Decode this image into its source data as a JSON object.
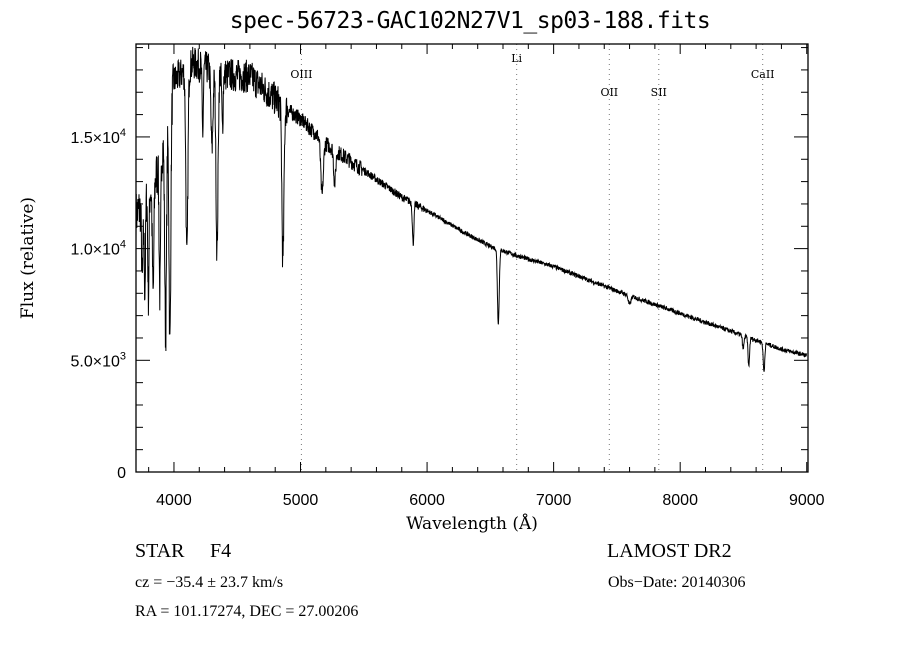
{
  "chart_data": {
    "type": "line",
    "title": "spec-56723-GAC102N27V1_sp03-188.fits",
    "xlabel": "Wavelength (Å)",
    "ylabel": "Flux (relative)",
    "xlim": [
      3700,
      9010
    ],
    "ylim": [
      0,
      19160
    ],
    "x_ticks": [
      4000,
      5000,
      6000,
      7000,
      8000,
      9000
    ],
    "x_tick_labels": [
      "4000",
      "5000",
      "6000",
      "7000",
      "8000",
      "9000"
    ],
    "y_ticks": [
      0,
      5000,
      10000,
      15000
    ],
    "y_tick_labels": [
      {
        "mant": "0",
        "exp": ""
      },
      {
        "mant": "5.0×10",
        "exp": "3"
      },
      {
        "mant": "1.0×10",
        "exp": "4"
      },
      {
        "mant": "1.5×10",
        "exp": "4"
      }
    ],
    "grid": false,
    "continuum": [
      [
        3700,
        11500
      ],
      [
        3850,
        13000
      ],
      [
        3950,
        15500
      ],
      [
        4000,
        17500
      ],
      [
        4150,
        18300
      ],
      [
        4400,
        17800
      ],
      [
        4600,
        17700
      ],
      [
        4800,
        16700
      ],
      [
        4900,
        16200
      ],
      [
        5000,
        15800
      ],
      [
        5200,
        14700
      ],
      [
        5500,
        13500
      ],
      [
        5800,
        12300
      ],
      [
        6000,
        11700
      ],
      [
        6300,
        10700
      ],
      [
        6500,
        10100
      ],
      [
        6700,
        9700
      ],
      [
        7000,
        9200
      ],
      [
        7500,
        8100
      ],
      [
        8000,
        7100
      ],
      [
        8500,
        6100
      ],
      [
        8800,
        5500
      ],
      [
        9010,
        5200
      ]
    ],
    "absorption_lines": [
      [
        3750,
        3500,
        6
      ],
      [
        3770,
        4000,
        5
      ],
      [
        3798,
        4500,
        5
      ],
      [
        3835,
        5000,
        6
      ],
      [
        3889,
        6000,
        6
      ],
      [
        3934,
        9000,
        7
      ],
      [
        3968,
        10500,
        7
      ],
      [
        4102,
        8500,
        8
      ],
      [
        4227,
        3000,
        5
      ],
      [
        4300,
        3500,
        8
      ],
      [
        4340,
        8000,
        8
      ],
      [
        4383,
        2500,
        5
      ],
      [
        4861,
        7000,
        8
      ],
      [
        5170,
        2500,
        10
      ],
      [
        5270,
        1500,
        8
      ],
      [
        5890,
        1800,
        6
      ],
      [
        6563,
        3300,
        7
      ],
      [
        7600,
        400,
        10
      ],
      [
        8498,
        600,
        6
      ],
      [
        8542,
        1300,
        6
      ],
      [
        8662,
        1300,
        6
      ]
    ],
    "annotations": [
      {
        "label": "OIII",
        "x": 5007,
        "row": 2
      },
      {
        "label": "Li",
        "x": 6708,
        "row": 1
      },
      {
        "label": "OII",
        "x": 7440,
        "row": 3
      },
      {
        "label": "SII",
        "x": 7831,
        "row": 3
      },
      {
        "label": "CaII",
        "x": 8652,
        "row": 2
      }
    ]
  },
  "footer": {
    "object_type": "STAR",
    "subclass": "F4",
    "survey": "LAMOST DR2",
    "cz": "cz = −35.4 ± 23.7 km/s",
    "obs_date": "Obs−Date: 20140306",
    "coords": "RA = 101.17274, DEC =  27.00206"
  }
}
